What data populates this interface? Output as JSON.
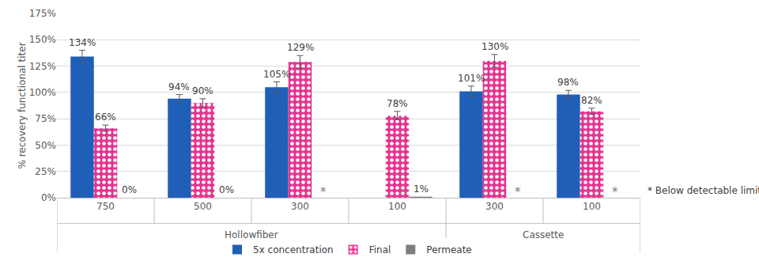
{
  "chart_data": {
    "type": "bar",
    "ylabel": "% recovery functional titer",
    "categories": [
      "750",
      "500",
      "300",
      "100",
      "300",
      "100"
    ],
    "category_groups": [
      "Hollowfiber",
      "Hollowfiber",
      "Hollowfiber",
      "Hollowfiber",
      "Cassette",
      "Cassette"
    ],
    "series": [
      {
        "name": "5x concentration",
        "color": "#1f5fb8",
        "values": [
          134,
          94,
          105,
          null,
          101,
          98
        ],
        "value_labels": [
          "134%",
          "94%",
          "105%",
          null,
          "101%",
          "98%"
        ],
        "errors": [
          6,
          4,
          5,
          null,
          5,
          4
        ]
      },
      {
        "name": "Final",
        "color": "#e6338f",
        "marker": "dots",
        "values": [
          66,
          90,
          129,
          78,
          130,
          82
        ],
        "value_labels": [
          "66%",
          "90%",
          "129%",
          "78%",
          "130%",
          "82%"
        ],
        "errors": [
          3,
          4,
          6,
          4,
          6,
          3
        ]
      },
      {
        "name": "Permeate",
        "color": "#7f7f7f",
        "values": [
          0,
          0,
          null,
          1,
          null,
          null
        ],
        "value_labels": [
          "0%",
          "0%",
          "*",
          "1%",
          "*",
          "*"
        ]
      }
    ],
    "ylim": [
      0,
      175
    ],
    "yticks": [
      {
        "value": 0,
        "label": "0%"
      },
      {
        "value": 25,
        "label": "25%"
      },
      {
        "value": 50,
        "label": "50%"
      },
      {
        "value": 75,
        "label": "75%"
      },
      {
        "value": 100,
        "label": "100%"
      },
      {
        "value": 125,
        "label": "125%"
      },
      {
        "value": 150,
        "label": "150%"
      },
      {
        "value": 175,
        "label": "175%"
      }
    ],
    "grid": true,
    "legend": "bottom",
    "data_labels": true,
    "annotations": [
      "* Below detectable limit"
    ]
  }
}
